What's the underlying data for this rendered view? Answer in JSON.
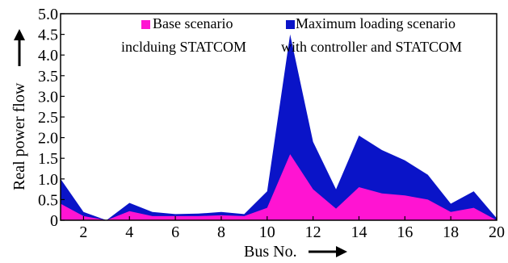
{
  "chart_data": {
    "type": "area",
    "stacked": false,
    "xlabel": "Bus No.",
    "ylabel": "Real power flow",
    "xlim": [
      1,
      20
    ],
    "ylim": [
      0,
      5.0
    ],
    "x_ticks": [
      2,
      4,
      6,
      8,
      10,
      12,
      14,
      16,
      18,
      20
    ],
    "y_ticks": [
      0,
      0.5,
      1.0,
      1.5,
      2.0,
      2.5,
      3.0,
      3.5,
      4.0,
      4.5,
      5.0
    ],
    "y_tick_labels": [
      "0",
      "0.5",
      "1.0",
      "1.5",
      "2.0",
      "2.5",
      "3.0",
      "3.5",
      "4.0",
      "4.5",
      "5.0"
    ],
    "grid": false,
    "legend_position": "top",
    "x": [
      1,
      2,
      3,
      4,
      5,
      6,
      7,
      8,
      9,
      10,
      11,
      12,
      13,
      14,
      15,
      16,
      17,
      18,
      19,
      20
    ],
    "series": [
      {
        "name_line1": "Maximum loading scenario",
        "name_line2": "with controller and STATCOM",
        "color": "#0a14c8",
        "values": [
          1.0,
          0.2,
          0.0,
          0.42,
          0.2,
          0.15,
          0.16,
          0.2,
          0.15,
          0.7,
          4.5,
          1.9,
          0.75,
          2.05,
          1.7,
          1.45,
          1.1,
          0.4,
          0.7,
          0.05
        ]
      },
      {
        "name_line1": "Base scenario",
        "name_line2": "inclduing STATCOM",
        "color": "#ff14d2",
        "values": [
          0.4,
          0.1,
          0.0,
          0.22,
          0.1,
          0.1,
          0.1,
          0.12,
          0.1,
          0.3,
          1.6,
          0.75,
          0.28,
          0.8,
          0.65,
          0.6,
          0.5,
          0.2,
          0.3,
          0.0
        ]
      }
    ]
  }
}
